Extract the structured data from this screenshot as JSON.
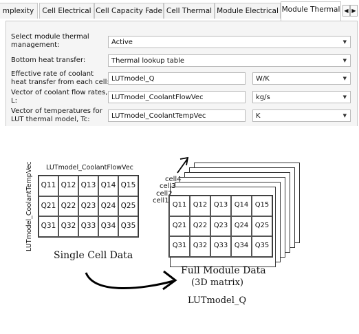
{
  "tabs": [
    {
      "label": "mplexity"
    },
    {
      "label": "Cell Electrical"
    },
    {
      "label": "Cell Capacity Fade"
    },
    {
      "label": "Cell Thermal"
    },
    {
      "label": "Module Electrical"
    },
    {
      "label": "Module Thermal",
      "active": true
    }
  ],
  "tab_scroll": {
    "left": "◀",
    "right": "▶"
  },
  "settings": {
    "thermal_management": {
      "label": "Select module thermal management:",
      "value": "Active"
    },
    "bottom_heat_transfer": {
      "label": "Bottom heat transfer:",
      "value": "Thermal lookup table"
    },
    "effective_rate": {
      "label": "Effective rate of coolant heat transfer from each cell:",
      "value": "LUTmodel_Q",
      "unit": "W/K"
    },
    "flow_rates": {
      "label": "Vector of coolant flow rates, L:",
      "value": "LUTmodel_CoolantFlowVec",
      "unit": "kg/s"
    },
    "temperatures": {
      "label": "Vector of temperatures for LUT thermal model, Tc:",
      "value": "LUTmodel_CoolantTempVec",
      "unit": "K"
    }
  },
  "diagram": {
    "col_axis_label": "LUTmodel_CoolantFlowVec",
    "row_axis_label": "LUTmodel_CoolantTempVec",
    "single_cells": [
      "Q11",
      "Q12",
      "Q13",
      "Q14",
      "Q15",
      "Q21",
      "Q22",
      "Q23",
      "Q24",
      "Q25",
      "Q31",
      "Q32",
      "Q33",
      "Q34",
      "Q35"
    ],
    "single_caption": "Single Cell Data",
    "layer_labels": [
      "cell4",
      "cell3",
      "cell2",
      "cell1"
    ],
    "module_cells": [
      "Q11",
      "Q12",
      "Q13",
      "Q14",
      "Q15",
      "Q21",
      "Q22",
      "Q23",
      "Q24",
      "Q25",
      "Q31",
      "Q32",
      "Q33",
      "Q34",
      "Q35"
    ],
    "full_caption_line1": "Full Module Data",
    "full_caption_line2": "(3D matrix)",
    "matrix_name": "LUTmodel_Q"
  }
}
